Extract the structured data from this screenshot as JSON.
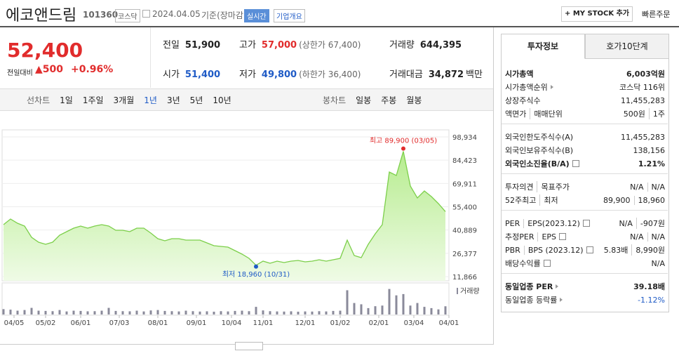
{
  "header": {
    "name": "에코앤드림",
    "code": "101360",
    "market": "코스닥",
    "date": "2024.04.05",
    "basis": "기준(장마감)",
    "realtime": "실시간",
    "company_info": "기업개요",
    "my_stock": "+ MY STOCK 추가",
    "quick_order": "빠른주문"
  },
  "quote": {
    "price": "52,400",
    "price_color": "#e12c2c",
    "change_label": "전일대비",
    "change": "▲500",
    "change_pct": "+0.96%",
    "items": [
      {
        "label": "전일",
        "value": "51,900"
      },
      {
        "label": "고가",
        "value": "57,000",
        "note": "(상한가 67,400)",
        "color": "#e12c2c"
      },
      {
        "label": "거래량",
        "value": "644,395"
      },
      {
        "label": "시가",
        "value": "51,400",
        "color": "#1f5bc6"
      },
      {
        "label": "저가",
        "value": "49,800",
        "note": "(하한가 36,400)",
        "color": "#1f5bc6"
      },
      {
        "label": "거래대금",
        "value": "34,872",
        "unit": "백만"
      }
    ]
  },
  "period_tabs": {
    "line_label": "선차트",
    "line": [
      "1일",
      "1주일",
      "3개월",
      "1년",
      "3년",
      "5년",
      "10년"
    ],
    "selected": 3,
    "candle_label": "봉차트",
    "candle": [
      "일봉",
      "주봉",
      "월봉"
    ]
  },
  "chart_data": {
    "type": "line",
    "color": "#7ccf4a",
    "grid": true,
    "values": [
      44240,
      47740,
      45120,
      43370,
      36370,
      33300,
      31990,
      33300,
      37680,
      39870,
      42050,
      43370,
      42050,
      43370,
      44240,
      43370,
      40740,
      40740,
      39870,
      42050,
      42050,
      38990,
      35490,
      34180,
      35490,
      35490,
      34620,
      34620,
      34620,
      32870,
      31120,
      30680,
      30240,
      28050,
      25870,
      23240,
      18960,
      21490,
      20180,
      21490,
      20620,
      21490,
      21930,
      21050,
      21490,
      22370,
      21490,
      22370,
      23240,
      34620,
      24990,
      23680,
      31990,
      38550,
      44240,
      77050,
      74870,
      89900,
      68300,
      60870,
      65240,
      61740,
      57370,
      52400
    ],
    "xlim": [
      0,
      63
    ],
    "xticks": [
      {
        "value": 1.5,
        "label": "04/05"
      },
      {
        "value": 6,
        "label": "05/02"
      },
      {
        "value": 11,
        "label": "06/01"
      },
      {
        "value": 16.5,
        "label": "07/03"
      },
      {
        "value": 22,
        "label": "08/01"
      },
      {
        "value": 27.5,
        "label": "09/01"
      },
      {
        "value": 32.5,
        "label": "10/04"
      },
      {
        "value": 37,
        "label": "11/01"
      },
      {
        "value": 43,
        "label": "12/01"
      },
      {
        "value": 48,
        "label": "01/02"
      },
      {
        "value": 53.5,
        "label": "02/01"
      },
      {
        "value": 58.5,
        "label": "03/04"
      },
      {
        "value": 63.5,
        "label": "04/01"
      }
    ],
    "ylim": [
      11866,
      98934
    ],
    "yticks": [
      {
        "value": 98934,
        "label": "98,934"
      },
      {
        "value": 84423,
        "label": "84,423"
      },
      {
        "value": 69911,
        "label": "69,911"
      },
      {
        "value": 55400,
        "label": "55,400"
      },
      {
        "value": 40889,
        "label": "40,889"
      },
      {
        "value": 26377,
        "label": "26,377"
      },
      {
        "value": 11866,
        "label": "11,866"
      }
    ],
    "high_label": "최고 89,900 (03/05)",
    "low_label": "최저 18,960 (10/31)",
    "volume": {
      "label": "거래량",
      "color": "#8a8a9a",
      "ylim": [
        0,
        2200000
      ],
      "values": [
        420000,
        380000,
        300000,
        350000,
        520000,
        300000,
        280000,
        260000,
        350000,
        240000,
        300000,
        280000,
        250000,
        260000,
        300000,
        520000,
        280000,
        260000,
        250000,
        300000,
        240000,
        320000,
        350000,
        280000,
        260000,
        240000,
        300000,
        260000,
        230000,
        250000,
        220000,
        260000,
        240000,
        280000,
        300000,
        260000,
        600000,
        320000,
        260000,
        240000,
        230000,
        250000,
        220000,
        240000,
        230000,
        260000,
        240000,
        280000,
        300000,
        1900000,
        900000,
        800000,
        500000,
        650000,
        700000,
        2000000,
        1500000,
        1600000,
        700000,
        900000,
        600000,
        500000,
        400000,
        644395
      ]
    }
  },
  "investment_info": {
    "tabs": [
      "투자정보",
      "호가10단계"
    ],
    "selected": 0,
    "groups": [
      [
        {
          "labels": [
            "시가총액"
          ],
          "values": [
            "6,003억원"
          ],
          "emphasis": true
        },
        {
          "labels": [
            "시가총액순위"
          ],
          "arrow": true,
          "values": [
            "코스닥 116위"
          ]
        },
        {
          "labels": [
            "상장주식수"
          ],
          "values": [
            "11,455,283"
          ]
        },
        {
          "labels": [
            "액면가",
            "매매단위"
          ],
          "values": [
            "500원",
            "1주"
          ]
        }
      ],
      [
        {
          "labels": [
            "외국인한도주식수(A)"
          ],
          "values": [
            "11,455,283"
          ]
        },
        {
          "labels": [
            "외국인보유주식수(B)"
          ],
          "values": [
            "138,156"
          ]
        },
        {
          "labels": [
            "외국인소진율(B/A)"
          ],
          "help": true,
          "values": [
            "1.21%"
          ],
          "emphasis": true
        }
      ],
      [
        {
          "labels": [
            "투자의견",
            "목표주가"
          ],
          "values": [
            "N/A",
            "N/A"
          ]
        },
        {
          "labels": [
            "52주최고",
            "최저"
          ],
          "values": [
            "89,900",
            "18,960"
          ]
        }
      ],
      [
        {
          "labels": [
            "PER",
            "EPS(2023.12)"
          ],
          "help": true,
          "values": [
            "N/A",
            "-907원"
          ]
        },
        {
          "labels": [
            "추정PER",
            "EPS"
          ],
          "help": true,
          "values": [
            "N/A",
            "N/A"
          ]
        },
        {
          "labels": [
            "PBR",
            "BPS (2023.12)"
          ],
          "help": true,
          "values": [
            "5.83배",
            "8,990원"
          ]
        },
        {
          "labels": [
            "배당수익률"
          ],
          "help": true,
          "values": [
            "N/A"
          ]
        }
      ],
      [
        {
          "labels": [
            "동일업종 PER"
          ],
          "arrow": true,
          "values": [
            "39.18배"
          ],
          "emphasis": true
        },
        {
          "labels": [
            "동일업종 등락률"
          ],
          "arrow": true,
          "values": [
            "-1.12%"
          ],
          "color": "#1f5bc6"
        }
      ]
    ]
  }
}
